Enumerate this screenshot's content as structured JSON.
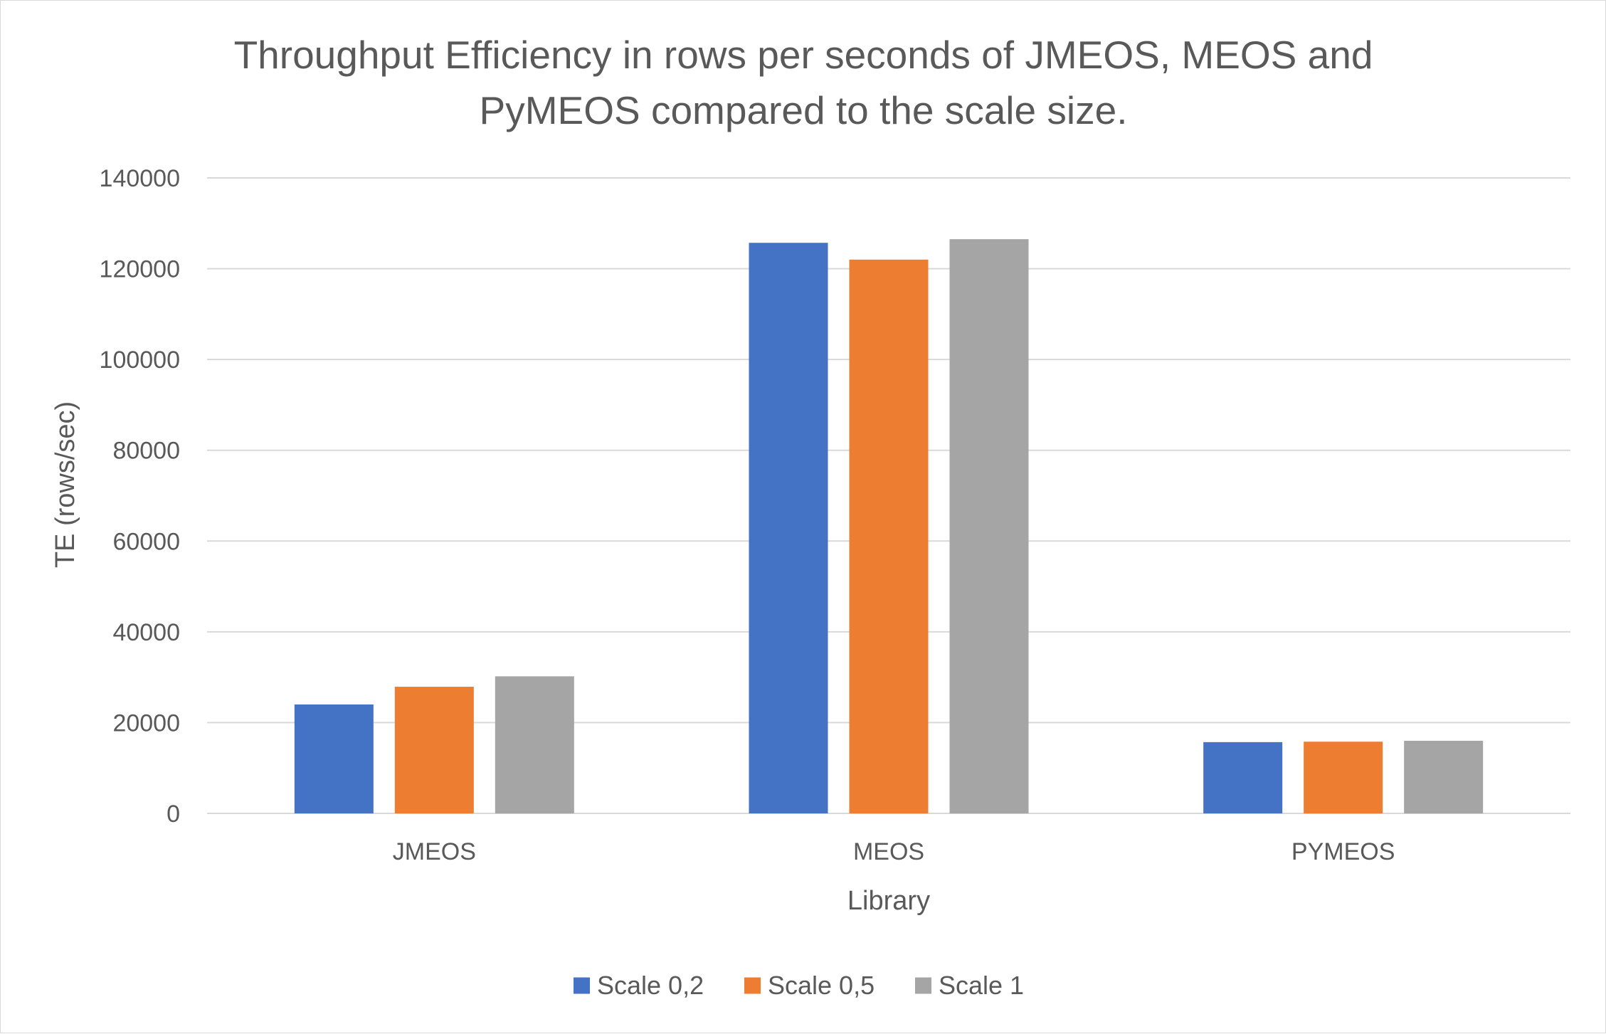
{
  "chart_data": {
    "type": "bar",
    "title_lines": [
      "Throughput Efficiency in rows per seconds of JMEOS, MEOS and",
      "PyMEOS compared to the scale size."
    ],
    "xlabel": "Library",
    "ylabel": "TE (rows/sec)",
    "ylim": [
      0,
      140000
    ],
    "yticks": [
      0,
      20000,
      40000,
      60000,
      80000,
      100000,
      120000,
      140000
    ],
    "grid": true,
    "legend_position": "bottom",
    "categories": [
      "JMEOS",
      "MEOS",
      "PYMEOS"
    ],
    "series": [
      {
        "name": "Scale 0,2",
        "color": "#4472C4",
        "values": [
          24000,
          125700,
          15700
        ]
      },
      {
        "name": "Scale 0,5",
        "color": "#ED7D31",
        "values": [
          27900,
          122000,
          15800
        ]
      },
      {
        "name": "Scale 1",
        "color": "#A5A5A5",
        "values": [
          30200,
          126500,
          16000
        ]
      }
    ]
  }
}
